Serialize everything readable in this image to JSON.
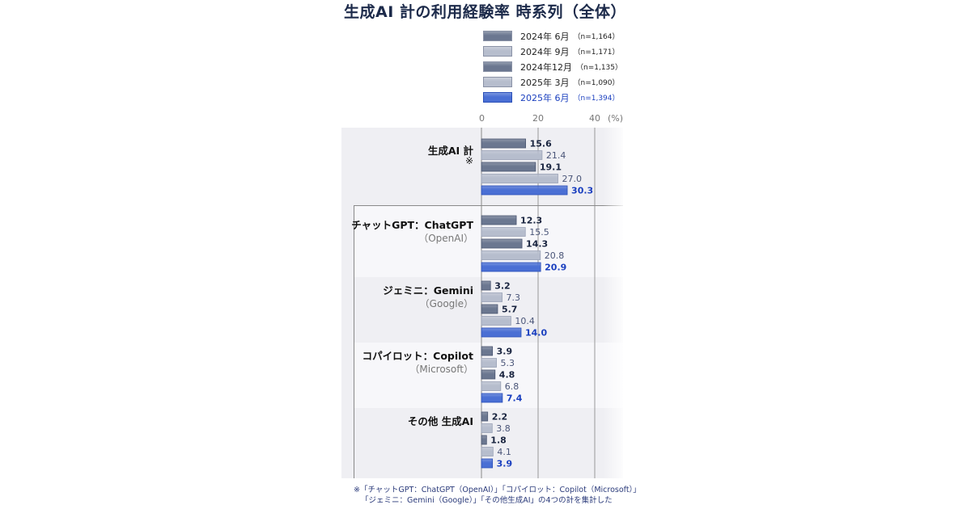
{
  "chart_data": {
    "type": "bar",
    "orientation": "horizontal",
    "title": "生成AI 計の利用経験率  時系列（全体）",
    "unit": "(%)",
    "xlim": [
      0,
      50
    ],
    "xticks": [
      "0",
      "20",
      "40"
    ],
    "grid": true,
    "legend_position": "top",
    "categories": [
      {
        "label": "生成AI 計",
        "sub": "※"
      },
      {
        "label": "チャットGPT：ChatGPT",
        "sub": "（OpenAI）"
      },
      {
        "label": "ジェミニ：Gemini",
        "sub": "（Google）"
      },
      {
        "label": "コパイロット：Copilot",
        "sub": "（Microsoft）"
      },
      {
        "label": "その他 生成AI",
        "sub": ""
      }
    ],
    "series": [
      {
        "name": "2024年  6月",
        "n": "（n=1,164）",
        "color": "#6b7790",
        "text_color": "#1a2540",
        "values": [
          15.6,
          12.3,
          3.2,
          3.9,
          2.2
        ]
      },
      {
        "name": "2024年  9月",
        "n": "（n=1,171）",
        "color": "#b6bdcd",
        "text_color": "#4a5578",
        "values": [
          21.4,
          15.5,
          7.3,
          5.3,
          3.8
        ]
      },
      {
        "name": "2024年12月",
        "n": "（n=1,135）",
        "color": "#6b7790",
        "text_color": "#1a2540",
        "values": [
          19.1,
          14.3,
          5.7,
          4.8,
          1.8
        ]
      },
      {
        "name": "2025年  3月",
        "n": "（n=1,090）",
        "color": "#b6bdcd",
        "text_color": "#4a5578",
        "values": [
          27.0,
          20.8,
          10.4,
          6.8,
          4.1
        ]
      },
      {
        "name": "2025年  6月",
        "n": "（n=1,394）",
        "color": "#4a6fd4",
        "text_color": "#1a3fbf",
        "values": [
          30.3,
          20.9,
          14.0,
          7.4,
          3.9
        ]
      }
    ]
  },
  "note": {
    "line1": "※「チャットGPT：ChatGPT（OpenAI）」「コパイロット：Copilot（Microsoft）」",
    "line2": "「ジェミニ：Gemini（Google）」「その他生成AI」の4つの計を集計した"
  }
}
